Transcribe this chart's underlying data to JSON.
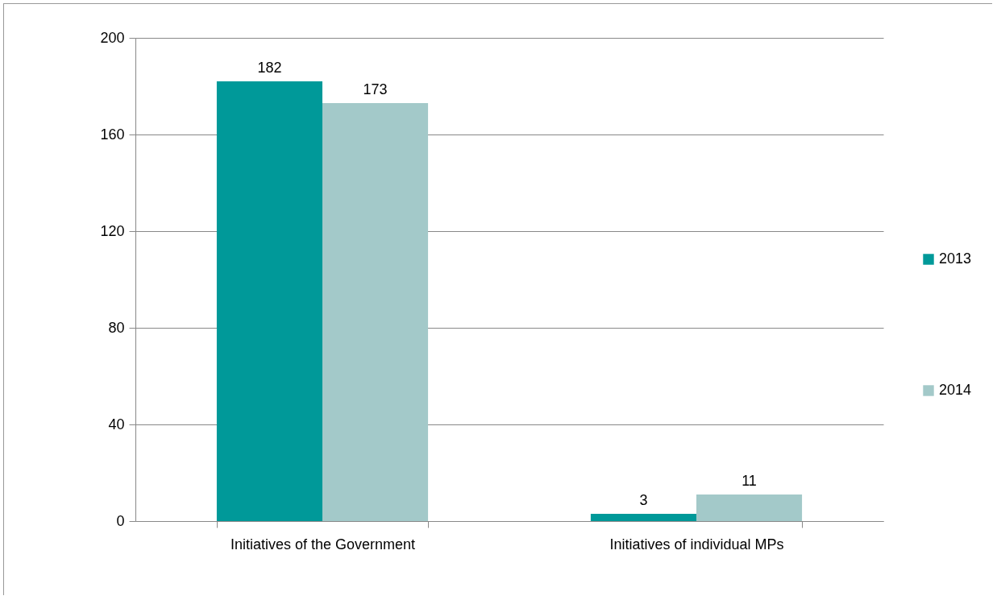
{
  "chart_data": {
    "type": "bar",
    "categories": [
      "Initiatives of the Government",
      "Initiatives of individual MPs"
    ],
    "series": [
      {
        "name": "2013",
        "color": "#009999",
        "values": [
          182,
          3
        ]
      },
      {
        "name": "2014",
        "color": "#a3c9c9",
        "values": [
          173,
          11
        ]
      }
    ],
    "ylim": [
      0,
      200
    ],
    "yticks": [
      0,
      40,
      80,
      120,
      160,
      200
    ],
    "grid": "y",
    "legend": "right",
    "data_labels": true
  }
}
